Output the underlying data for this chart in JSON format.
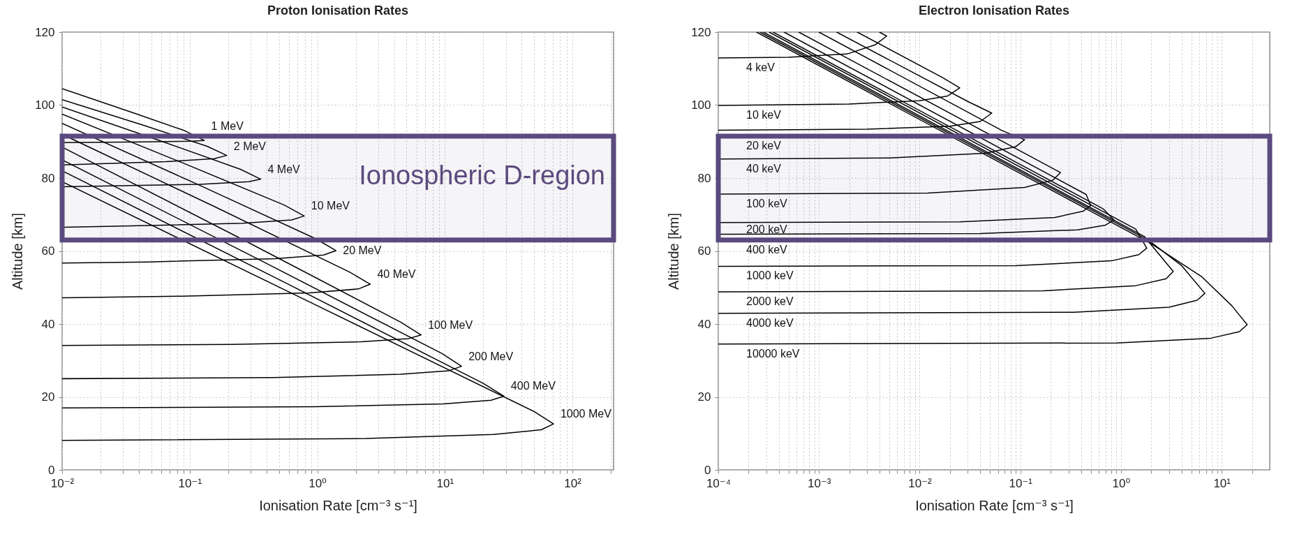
{
  "chart_data": [
    {
      "type": "line",
      "title": "Proton Ionisation Rates",
      "xlabel": "Ionisation Rate [cm⁻³ s⁻¹]",
      "ylabel": "Altitude [km]",
      "log": "x",
      "grid": true,
      "xlim": [
        0.01,
        210
      ],
      "ylim": [
        0,
        120
      ],
      "xticks": [
        {
          "value": 0.01,
          "label": "10⁻²"
        },
        {
          "value": 0.02,
          "label": null
        },
        {
          "value": 0.03,
          "label": null
        },
        {
          "value": 0.04,
          "label": null
        },
        {
          "value": 0.05,
          "label": null
        },
        {
          "value": 0.06,
          "label": null
        },
        {
          "value": 0.07,
          "label": null
        },
        {
          "value": 0.08,
          "label": null
        },
        {
          "value": 0.09,
          "label": null
        },
        {
          "value": 0.1,
          "label": "10⁻¹"
        },
        {
          "value": 0.2,
          "label": null
        },
        {
          "value": 0.3,
          "label": null
        },
        {
          "value": 0.4,
          "label": null
        },
        {
          "value": 0.5,
          "label": null
        },
        {
          "value": 0.6,
          "label": null
        },
        {
          "value": 0.7,
          "label": null
        },
        {
          "value": 0.8,
          "label": null
        },
        {
          "value": 0.9,
          "label": null
        },
        {
          "value": 1,
          "label": "10⁰"
        },
        {
          "value": 2,
          "label": null
        },
        {
          "value": 3,
          "label": null
        },
        {
          "value": 4,
          "label": null
        },
        {
          "value": 5,
          "label": null
        },
        {
          "value": 6,
          "label": null
        },
        {
          "value": 7,
          "label": null
        },
        {
          "value": 8,
          "label": null
        },
        {
          "value": 9,
          "label": null
        },
        {
          "value": 10,
          "label": "10¹"
        },
        {
          "value": 20,
          "label": null
        },
        {
          "value": 30,
          "label": null
        },
        {
          "value": 40,
          "label": null
        },
        {
          "value": 50,
          "label": null
        },
        {
          "value": 60,
          "label": null
        },
        {
          "value": 70,
          "label": null
        },
        {
          "value": 80,
          "label": null
        },
        {
          "value": 90,
          "label": null
        },
        {
          "value": 100,
          "label": "10²"
        },
        {
          "value": 200,
          "label": null
        }
      ],
      "yticks": [
        0,
        20,
        40,
        60,
        80,
        100,
        120
      ],
      "series": [
        {
          "name": "1 MeV",
          "color": "#000000",
          "x": [
            0.01,
            0.036,
            0.091,
            0.13,
            0.104,
            0.043,
            0.01
          ],
          "values": [
            104.5,
            97.9,
            93.0,
            90.3,
            90.1,
            89.9,
            89.7
          ]
        },
        {
          "name": "2 MeV",
          "color": "#000000",
          "x": [
            0.01,
            0.044,
            0.137,
            0.195,
            0.156,
            0.065,
            0.01
          ],
          "values": [
            101.5,
            94.4,
            88.7,
            86.2,
            85.3,
            84.5,
            83.6
          ]
        },
        {
          "name": "4 MeV",
          "color": "#000000",
          "x": [
            0.01,
            0.06,
            0.25,
            0.36,
            0.29,
            0.12,
            0.01
          ],
          "values": [
            99.5,
            90.1,
            82.4,
            79.7,
            79.0,
            78.3,
            77.6
          ]
        },
        {
          "name": "10 MeV",
          "color": "#000000",
          "x": [
            0.01,
            0.089,
            0.55,
            0.79,
            0.63,
            0.26,
            0.026,
            0.01
          ],
          "values": [
            97.5,
            84.1,
            72.6,
            69.6,
            68.5,
            67.6,
            66.8,
            66.5
          ]
        },
        {
          "name": "20 MeV",
          "color": "#000000",
          "x": [
            0.01,
            0.118,
            0.98,
            1.4,
            1.12,
            0.47,
            0.047,
            0.01
          ],
          "values": [
            95,
            78.1,
            63.3,
            60.1,
            58.9,
            57.9,
            57.0,
            56.7
          ]
        },
        {
          "name": "40 MeV",
          "color": "#000000",
          "x": [
            0.01,
            0.16,
            1.8,
            2.6,
            2.1,
            0.87,
            0.087,
            0.01
          ],
          "values": [
            92,
            72.0,
            54.2,
            50.9,
            49.6,
            48.5,
            47.6,
            47.2
          ]
        },
        {
          "name": "100 MeV",
          "color": "#000000",
          "x": [
            0.01,
            0.255,
            4.5,
            6.5,
            5.2,
            2.2,
            0.22,
            0.01
          ],
          "values": [
            88.5,
            63.3,
            40.5,
            37,
            36.0,
            35.1,
            34.4,
            34.1
          ]
        },
        {
          "name": "200 MeV",
          "color": "#000000",
          "x": [
            0.01,
            0.37,
            9.5,
            13.5,
            10.8,
            4.5,
            0.45,
            0.01
          ],
          "values": [
            85,
            57.2,
            31.9,
            28.4,
            27.2,
            26.2,
            25.3,
            25
          ]
        },
        {
          "name": "400 MeV",
          "color": "#000000",
          "x": [
            0.01,
            0.54,
            20,
            29,
            23,
            9.7,
            0.97,
            0.01
          ],
          "values": [
            82,
            51.6,
            23.7,
            20.2,
            19.1,
            18.1,
            17.3,
            17
          ]
        },
        {
          "name": "1000 MeV",
          "color": "#000000",
          "x": [
            0.01,
            0.84,
            50,
            71,
            57,
            24,
            2.4,
            0.01
          ],
          "values": [
            79,
            46.3,
            16.0,
            12.6,
            11.0,
            9.7,
            8.6,
            8.1
          ]
        }
      ],
      "bands": [
        {
          "axis": "y",
          "from": 63,
          "to": 91.5,
          "label": "Ionospheric D-region",
          "color": "#5b4a7e"
        }
      ]
    },
    {
      "type": "line",
      "title": "Electron Ionisation Rates",
      "xlabel": "Ionisation Rate [cm⁻³ s⁻¹]",
      "ylabel": "Altitude [km]",
      "log": "x",
      "grid": true,
      "xlim": [
        0.0001,
        30
      ],
      "ylim": [
        0,
        120
      ],
      "xticks": [
        {
          "value": 0.0001,
          "label": "10⁻⁴"
        },
        {
          "value": 0.0002,
          "label": null
        },
        {
          "value": 0.0003,
          "label": null
        },
        {
          "value": 0.0004,
          "label": null
        },
        {
          "value": 0.0005,
          "label": null
        },
        {
          "value": 0.0006,
          "label": null
        },
        {
          "value": 0.0007,
          "label": null
        },
        {
          "value": 0.0008,
          "label": null
        },
        {
          "value": 0.0009,
          "label": null
        },
        {
          "value": 0.001,
          "label": "10⁻³"
        },
        {
          "value": 0.002,
          "label": null
        },
        {
          "value": 0.003,
          "label": null
        },
        {
          "value": 0.004,
          "label": null
        },
        {
          "value": 0.005,
          "label": null
        },
        {
          "value": 0.006,
          "label": null
        },
        {
          "value": 0.007,
          "label": null
        },
        {
          "value": 0.008,
          "label": null
        },
        {
          "value": 0.009,
          "label": null
        },
        {
          "value": 0.01,
          "label": "10⁻²"
        },
        {
          "value": 0.02,
          "label": null
        },
        {
          "value": 0.03,
          "label": null
        },
        {
          "value": 0.04,
          "label": null
        },
        {
          "value": 0.05,
          "label": null
        },
        {
          "value": 0.06,
          "label": null
        },
        {
          "value": 0.07,
          "label": null
        },
        {
          "value": 0.08,
          "label": null
        },
        {
          "value": 0.09,
          "label": null
        },
        {
          "value": 0.1,
          "label": "10⁻¹"
        },
        {
          "value": 0.2,
          "label": null
        },
        {
          "value": 0.3,
          "label": null
        },
        {
          "value": 0.4,
          "label": null
        },
        {
          "value": 0.5,
          "label": null
        },
        {
          "value": 0.6,
          "label": null
        },
        {
          "value": 0.7,
          "label": null
        },
        {
          "value": 0.8,
          "label": null
        },
        {
          "value": 0.9,
          "label": null
        },
        {
          "value": 1,
          "label": "10⁰"
        },
        {
          "value": 2,
          "label": null
        },
        {
          "value": 3,
          "label": null
        },
        {
          "value": 4,
          "label": null
        },
        {
          "value": 5,
          "label": null
        },
        {
          "value": 6,
          "label": null
        },
        {
          "value": 7,
          "label": null
        },
        {
          "value": 8,
          "label": null
        },
        {
          "value": 9,
          "label": null
        },
        {
          "value": 10,
          "label": "10¹"
        },
        {
          "value": 20,
          "label": null
        }
      ],
      "yticks": [
        0,
        20,
        40,
        60,
        80,
        100,
        120
      ],
      "series": [
        {
          "name": "4 keV",
          "color": "#000000",
          "x": [
            0.004,
            0.0047,
            0.0036,
            0.0019,
            0.0005,
            0.0001
          ],
          "values": [
            120,
            118.9,
            116.5,
            114,
            113.1,
            112.9
          ]
        },
        {
          "name": "10 keV",
          "color": "#000000",
          "x": [
            0.0024,
            0.017,
            0.025,
            0.019,
            0.01,
            0.002,
            0.0001
          ],
          "values": [
            120,
            107.5,
            104.7,
            102.5,
            101.2,
            100.3,
            99.9
          ]
        },
        {
          "name": "20 keV",
          "color": "#000000",
          "x": [
            0.0015,
            0.03,
            0.052,
            0.04,
            0.02,
            0.003,
            0.0001
          ],
          "values": [
            120,
            101,
            97.8,
            95.5,
            94.2,
            93.4,
            93.1
          ]
        },
        {
          "name": "40 keV",
          "color": "#000000",
          "x": [
            0.001,
            0.066,
            0.11,
            0.09,
            0.045,
            0.005,
            0.0001
          ],
          "values": [
            120,
            93,
            90.5,
            88.6,
            86.8,
            85.5,
            85.2
          ]
        },
        {
          "name": "100 keV",
          "color": "#000000",
          "x": [
            0.00063,
            0.17,
            0.25,
            0.21,
            0.11,
            0.012,
            0.0001
          ],
          "values": [
            120,
            84,
            81.5,
            79.4,
            77.4,
            75.9,
            75.6
          ]
        },
        {
          "name": "200 keV",
          "color": "#000000",
          "x": [
            0.00045,
            0.45,
            0.5,
            0.42,
            0.22,
            0.025,
            0.0001
          ],
          "values": [
            120,
            75.5,
            72.5,
            70.9,
            69.2,
            68.0,
            67.8
          ]
        },
        {
          "name": "400 keV",
          "color": "#000000",
          "x": [
            0.00035,
            0.67,
            0.85,
            0.7,
            0.37,
            0.04,
            0.0001
          ],
          "values": [
            120,
            71.5,
            68.5,
            67.1,
            65.8,
            64.8,
            64.6
          ]
        },
        {
          "name": "1000 keV",
          "color": "#000000",
          "x": [
            0.00032,
            1.4,
            1.8,
            1.5,
            0.8,
            0.09,
            0.0001
          ],
          "values": [
            120,
            66,
            60.8,
            59.0,
            57.3,
            56.0,
            55.8
          ]
        },
        {
          "name": "2000 keV",
          "color": "#000000",
          "x": [
            0.00028,
            1.7,
            3.3,
            2.8,
            1.4,
            0.17,
            0.0001
          ],
          "values": [
            120,
            64,
            54.4,
            52.4,
            50.5,
            49.1,
            48.8
          ]
        },
        {
          "name": "4000 keV",
          "color": "#000000",
          "x": [
            0.00026,
            1.86,
            4,
            6.8,
            5.7,
            3,
            0.34,
            0.0001
          ],
          "values": [
            120,
            63,
            56,
            48.4,
            46.5,
            44.6,
            43.2,
            42.9
          ]
        },
        {
          "name": "10000 keV",
          "color": "#000000",
          "x": [
            0.00024,
            2,
            6.3,
            12.6,
            17.9,
            15,
            7.8,
            0.9,
            0.0001
          ],
          "values": [
            120,
            62,
            53,
            45,
            39.8,
            37.9,
            36.1,
            34.8,
            34.5
          ]
        }
      ],
      "bands": [
        {
          "axis": "y",
          "from": 63,
          "to": 91.5,
          "color": "#5b4a7e"
        }
      ]
    }
  ]
}
